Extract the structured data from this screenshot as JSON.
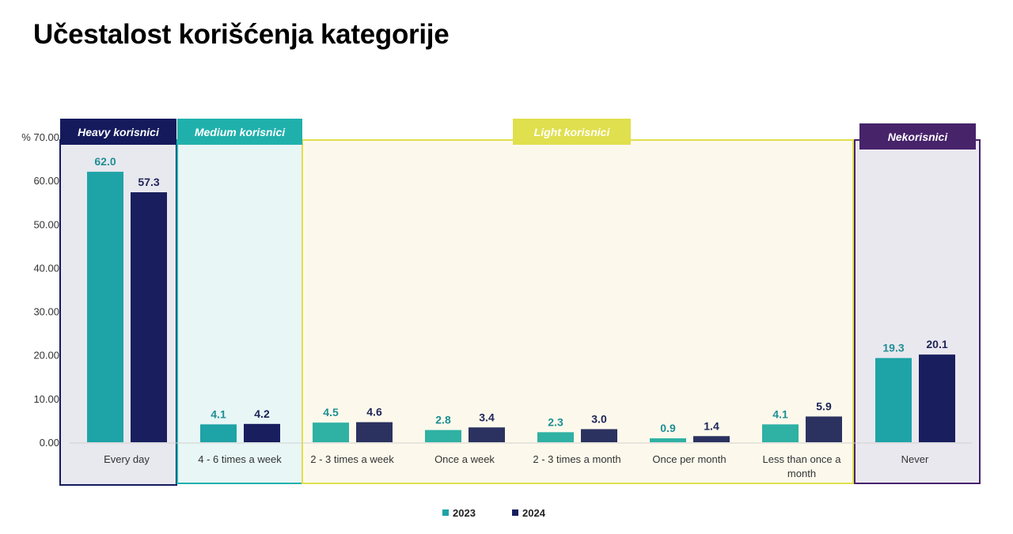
{
  "title": "Učestalost korišćenja kategorije",
  "chart_data": {
    "type": "bar",
    "title": "Učestalost korišćenja kategorije",
    "ylabel": "%",
    "ylim": [
      0,
      70
    ],
    "yticks": [
      "0.00",
      "10.00",
      "20.00",
      "30.00",
      "40.00",
      "50.00",
      "60.00",
      "70.00"
    ],
    "y_unit_prefix": "%",
    "categories": [
      "Every day",
      "4 - 6 times a week",
      "2 - 3 times a week",
      "Once a week",
      "2 - 3 times a month",
      "Once per month",
      "Less than once a month",
      "Never"
    ],
    "series": [
      {
        "name": "2023",
        "values": [
          62.0,
          4.1,
          4.5,
          2.8,
          2.3,
          0.9,
          4.1,
          19.3
        ],
        "labels": [
          "62.0",
          "4.1",
          "4.5",
          "2.8",
          "2.3",
          "0.9",
          "4.1",
          "19.3"
        ]
      },
      {
        "name": "2024",
        "values": [
          57.3,
          4.2,
          4.6,
          3.4,
          3.0,
          1.4,
          5.9,
          20.1
        ],
        "labels": [
          "57.3",
          "4.2",
          "4.6",
          "3.4",
          "3.0",
          "1.4",
          "5.9",
          "20.1"
        ]
      }
    ],
    "groups": [
      {
        "label": "Heavy korisnici",
        "categories": [
          0
        ],
        "color": "#141a5c",
        "bg": "#e8e8ef"
      },
      {
        "label": "Medium korisnici",
        "categories": [
          1
        ],
        "color": "#20b0ac",
        "bg": "#e8f6f6"
      },
      {
        "label": "Light korisnici",
        "categories": [
          2,
          3,
          4,
          5,
          6
        ],
        "color": "#e0df4e",
        "bg": "#fcf9ec"
      },
      {
        "label": "Nekorisnici",
        "categories": [
          7
        ],
        "color": "#47236a",
        "bg": "#eae8ef"
      }
    ],
    "colors": {
      "2023": "#1ea3a6",
      "2024": "#191f5e"
    },
    "legend": "bottom",
    "grid": false
  }
}
